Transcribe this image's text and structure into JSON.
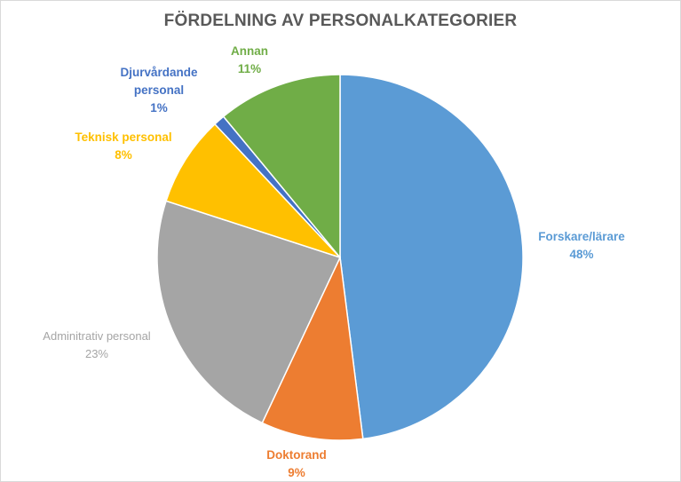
{
  "chart_data": {
    "type": "pie",
    "title": "FÖRDELNING AV PERSONALKATEGORIER",
    "slices": [
      {
        "label": "Forskare/lärare",
        "value": 48,
        "value_label": "48%",
        "color": "#5b9bd5"
      },
      {
        "label": "Doktorand",
        "value": 9,
        "value_label": "9%",
        "color": "#ed7d31"
      },
      {
        "label": "Adminitrativ personal",
        "value": 23,
        "value_label": "23%",
        "color": "#a5a5a5"
      },
      {
        "label": "Teknisk personal",
        "value": 8,
        "value_label": "8%",
        "color": "#ffc000"
      },
      {
        "label": "Djurvårdande personal",
        "value": 1,
        "value_label": "1%",
        "color": "#4472c4"
      },
      {
        "label": "Annan",
        "value": 11,
        "value_label": "11%",
        "color": "#70ad47"
      }
    ],
    "start_angle": "12 o'clock",
    "direction": "clockwise",
    "legend": "none"
  }
}
